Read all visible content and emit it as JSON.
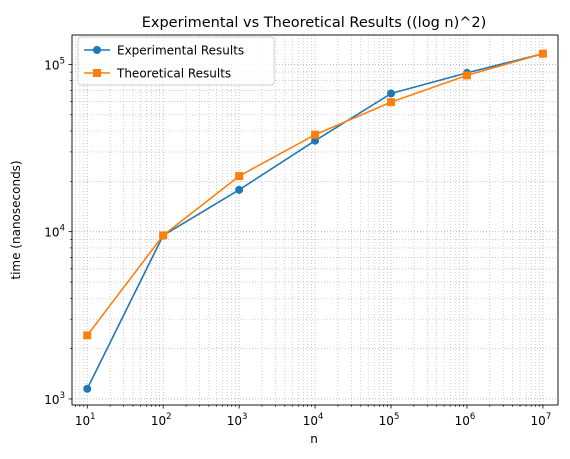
{
  "chart_data": {
    "type": "line",
    "title": "Experimental vs Theoretical Results ((log n)^2)",
    "xlabel": "n",
    "ylabel": "time (nanoseconds)",
    "xscale": "log",
    "yscale": "log",
    "xlim": [
      6.3,
      15800000
    ],
    "ylim": [
      920,
      150000
    ],
    "grid": "major and minor, dotted",
    "legend_position": "top-left",
    "x": [
      10,
      100,
      1000,
      10000,
      100000,
      1000000,
      10000000
    ],
    "x_ticks": [
      {
        "base": "10",
        "exp": "1"
      },
      {
        "base": "10",
        "exp": "2"
      },
      {
        "base": "10",
        "exp": "3"
      },
      {
        "base": "10",
        "exp": "4"
      },
      {
        "base": "10",
        "exp": "5"
      },
      {
        "base": "10",
        "exp": "6"
      },
      {
        "base": "10",
        "exp": "7"
      }
    ],
    "y_ticks": [
      {
        "value": 1000,
        "base": "10",
        "exp": "3"
      },
      {
        "value": 10000,
        "base": "10",
        "exp": "4"
      },
      {
        "value": 100000,
        "base": "10",
        "exp": "5"
      }
    ],
    "series": [
      {
        "name": "Experimental Results",
        "color": "#1f77b4",
        "marker": "circle",
        "values": [
          1150,
          9500,
          17800,
          35000,
          67000,
          89000,
          116000
        ]
      },
      {
        "name": "Theoretical Results",
        "color": "#ff7f0e",
        "marker": "square",
        "values": [
          2400,
          9500,
          21500,
          38000,
          59500,
          86000,
          116000
        ]
      }
    ]
  }
}
